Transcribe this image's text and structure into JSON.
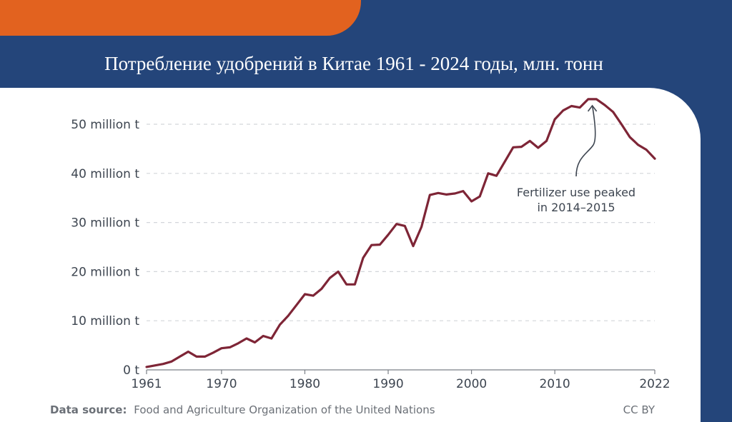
{
  "slide": {
    "title": "Потребление удобрений в Китае 1961 - 2024 годы, млн. тонн"
  },
  "colors": {
    "background": "#24457a",
    "accent_band": "#e2621f",
    "line": "#7e2536",
    "grid": "#d3d6da",
    "text": "#3d4550"
  },
  "chart_data": {
    "type": "line",
    "xlim": [
      1961,
      2022
    ],
    "ylim": [
      0,
      50
    ],
    "grid": "horizontal dashed",
    "y_ticks": [
      {
        "value": 0,
        "label": "0 t"
      },
      {
        "value": 10,
        "label": "10 million t"
      },
      {
        "value": 20,
        "label": "20 million t"
      },
      {
        "value": 30,
        "label": "30 million t"
      },
      {
        "value": 40,
        "label": "40 million t"
      },
      {
        "value": 50,
        "label": "50 million t"
      }
    ],
    "x_ticks": [
      {
        "value": 1961,
        "label": "1961"
      },
      {
        "value": 1970,
        "label": "1970"
      },
      {
        "value": 1980,
        "label": "1980"
      },
      {
        "value": 1990,
        "label": "1990"
      },
      {
        "value": 2000,
        "label": "2000"
      },
      {
        "value": 2010,
        "label": "2010"
      },
      {
        "value": 2022,
        "label": "2022"
      }
    ],
    "series": [
      {
        "x": [
          1961,
          1962,
          1963,
          1964,
          1965,
          1966,
          1967,
          1968,
          1969,
          1970,
          1971,
          1972,
          1973,
          1974,
          1975,
          1976,
          1977,
          1978,
          1979,
          1980,
          1981,
          1982,
          1983,
          1984,
          1985,
          1986,
          1987,
          1988,
          1989,
          1990,
          1991,
          1992,
          1993,
          1994,
          1995,
          1996,
          1997,
          1998,
          1999,
          2000,
          2001,
          2002,
          2003,
          2004,
          2005,
          2006,
          2007,
          2008,
          2009,
          2010,
          2011,
          2012,
          2013,
          2014,
          2015,
          2016,
          2017,
          2018,
          2019,
          2020,
          2021,
          2022
        ],
        "values": [
          0.6,
          0.9,
          1.2,
          1.7,
          2.7,
          3.7,
          2.7,
          2.7,
          3.5,
          4.4,
          4.6,
          5.4,
          6.4,
          5.6,
          6.9,
          6.4,
          9.2,
          11.0,
          13.2,
          15.4,
          15.1,
          16.5,
          18.7,
          20.0,
          17.4,
          17.4,
          22.8,
          25.4,
          25.5,
          27.5,
          29.7,
          29.3,
          25.2,
          29.1,
          35.6,
          36.0,
          35.7,
          35.9,
          36.4,
          34.3,
          35.3,
          40.0,
          39.5,
          42.4,
          45.3,
          45.4,
          46.6,
          45.2,
          46.6,
          51.0,
          52.8,
          53.7,
          53.4,
          55.1,
          55.1,
          53.9,
          52.5,
          50.0,
          47.4,
          45.8,
          44.8,
          43.0
        ]
      }
    ],
    "annotation": {
      "line1": "Fertilizer use peaked",
      "line2": "in 2014–2015"
    }
  },
  "footer": {
    "source_bold": "Data source:",
    "source_text": "Food and Agriculture Organization of the United Nations",
    "license": "CC BY"
  }
}
